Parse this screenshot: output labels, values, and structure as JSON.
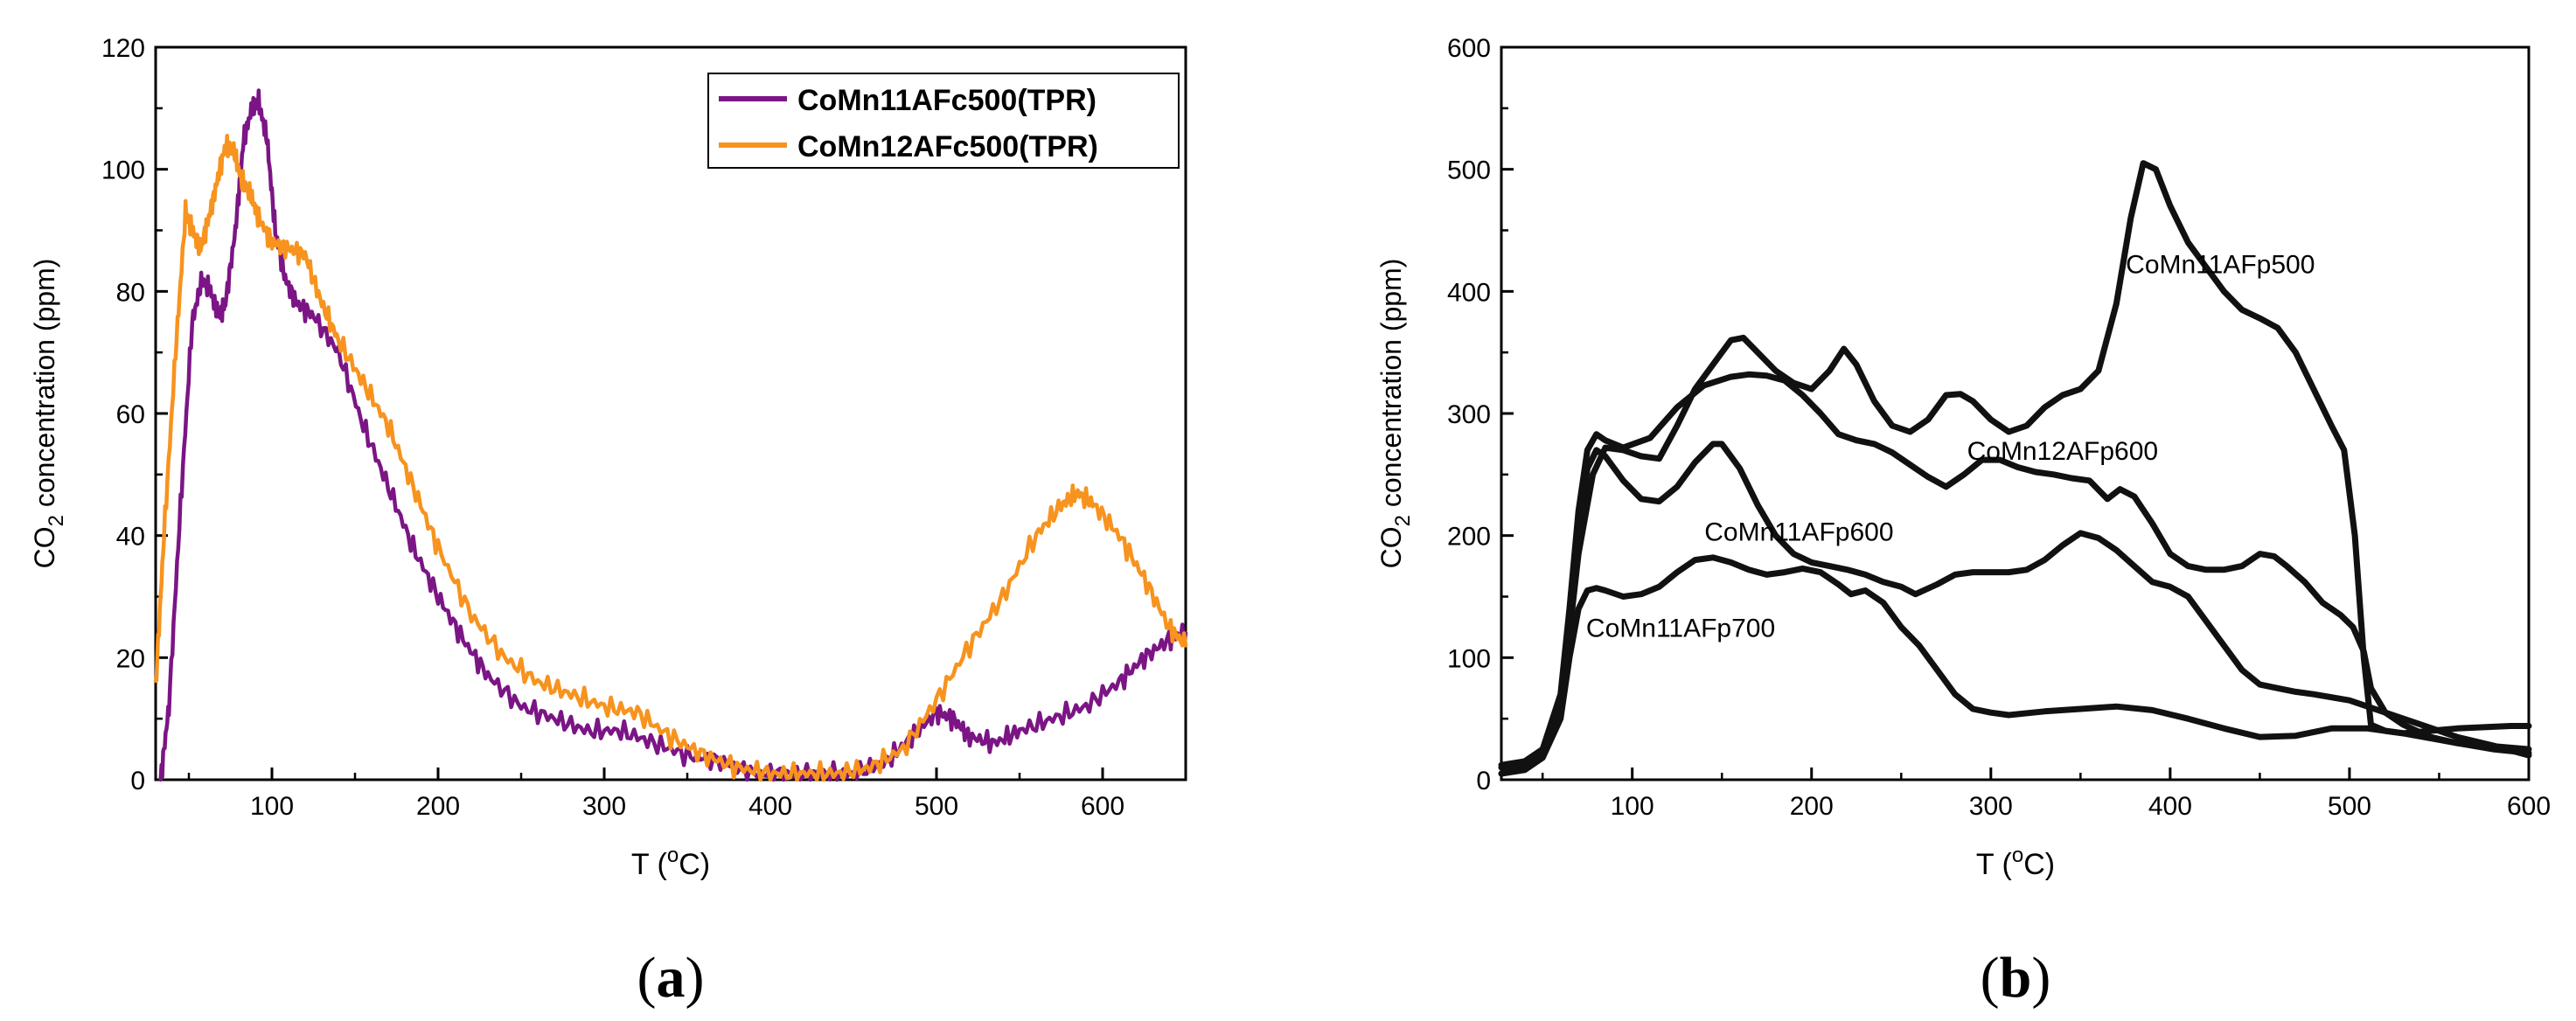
{
  "chart_data": [
    {
      "panel_label": "(a)",
      "type": "line",
      "title": "",
      "xlabel": "T (",
      "xlabel_sup": "o",
      "xlabel_unit": "C)",
      "ylabel_main": "CO",
      "ylabel_sub": "2",
      "ylabel_rest": " concentration (ppm)",
      "xlim": [
        30,
        650
      ],
      "ylim": [
        0,
        120
      ],
      "xticks": [
        100,
        200,
        300,
        400,
        500,
        600
      ],
      "yticks": [
        0,
        20,
        40,
        60,
        80,
        100,
        120
      ],
      "grid": false,
      "legend_position": "top-right",
      "series": [
        {
          "name": "CoMn11AFc500(TPR)",
          "color": "#7B1585",
          "x": [
            33,
            38,
            45,
            52,
            58,
            63,
            68,
            72,
            78,
            83,
            88,
            92,
            97,
            102,
            108,
            115,
            125,
            140,
            155,
            170,
            185,
            200,
            215,
            230,
            250,
            270,
            290,
            310,
            330,
            350,
            370,
            390,
            410,
            430,
            450,
            470,
            485,
            500,
            510,
            520,
            535,
            550,
            570,
            590,
            610,
            625,
            640,
            650
          ],
          "y": [
            0,
            12,
            45,
            75,
            82,
            80,
            76,
            78,
            90,
            105,
            110,
            111,
            105,
            90,
            82,
            78,
            76,
            70,
            58,
            48,
            38,
            30,
            23,
            17,
            12,
            10,
            8,
            8,
            6,
            4,
            3,
            1,
            1,
            1,
            1,
            3,
            7,
            11,
            10,
            7,
            6,
            8,
            10,
            12,
            16,
            20,
            23,
            24
          ]
        },
        {
          "name": "CoMn12AFc500(TPR)",
          "color": "#F7931E",
          "x": [
            30,
            35,
            42,
            48,
            52,
            57,
            62,
            67,
            72,
            77,
            82,
            87,
            92,
            100,
            110,
            120,
            130,
            140,
            155,
            170,
            185,
            200,
            220,
            240,
            260,
            280,
            300,
            320,
            340,
            360,
            380,
            400,
            420,
            440,
            460,
            480,
            500,
            520,
            540,
            560,
            575,
            585,
            595,
            610,
            625,
            640,
            650
          ],
          "y": [
            15,
            40,
            70,
            93,
            90,
            87,
            92,
            98,
            104,
            103,
            98,
            96,
            92,
            88,
            87,
            86,
            78,
            72,
            65,
            58,
            48,
            38,
            27,
            20,
            16,
            14,
            12,
            11,
            7,
            4,
            2,
            1,
            1,
            1,
            2,
            5,
            13,
            22,
            30,
            40,
            45,
            47,
            45,
            40,
            33,
            25,
            22
          ]
        }
      ]
    },
    {
      "panel_label": "(b)",
      "type": "line",
      "title": "",
      "xlabel": "T (",
      "xlabel_sup": "o",
      "xlabel_unit": "C)",
      "ylabel_main": "CO",
      "ylabel_sub": "2",
      "ylabel_rest": " concentration (ppm)",
      "xlim": [
        27,
        600
      ],
      "ylim": [
        0,
        600
      ],
      "xticks": [
        100,
        200,
        300,
        400,
        500,
        600
      ],
      "yticks": [
        0,
        100,
        200,
        300,
        400,
        500,
        600
      ],
      "grid": false,
      "legend_position": "none",
      "annotations": [
        {
          "text": "CoMn11AFp500",
          "x": 428,
          "y": 415
        },
        {
          "text": "CoMn12AFp600",
          "x": 340,
          "y": 262
        },
        {
          "text": "CoMn11AFp600",
          "x": 193,
          "y": 196
        },
        {
          "text": "CoMn11AFp700",
          "x": 127,
          "y": 117
        }
      ],
      "series": [
        {
          "name": "CoMn11AFp500",
          "color": "#111111",
          "x": [
            27,
            40,
            50,
            60,
            65,
            70,
            78,
            85,
            95,
            105,
            115,
            125,
            135,
            145,
            155,
            162,
            170,
            180,
            190,
            200,
            210,
            218,
            225,
            235,
            245,
            255,
            265,
            275,
            283,
            290,
            300,
            310,
            320,
            330,
            340,
            350,
            360,
            370,
            378,
            385,
            392,
            400,
            410,
            420,
            430,
            440,
            450,
            460,
            470,
            480,
            490,
            497,
            503,
            508,
            512,
            520,
            530,
            545,
            560,
            575,
            590,
            600
          ],
          "y": [
            12,
            15,
            25,
            60,
            120,
            185,
            250,
            272,
            270,
            265,
            263,
            290,
            320,
            340,
            360,
            362,
            350,
            335,
            325,
            320,
            335,
            353,
            340,
            310,
            290,
            285,
            295,
            315,
            316,
            310,
            295,
            285,
            290,
            305,
            315,
            320,
            335,
            390,
            460,
            505,
            500,
            470,
            440,
            420,
            400,
            385,
            378,
            370,
            350,
            320,
            290,
            270,
            200,
            100,
            45,
            40,
            38,
            40,
            42,
            43,
            44,
            44
          ]
        },
        {
          "name": "CoMn12AFp600",
          "color": "#111111",
          "x": [
            27,
            40,
            50,
            60,
            65,
            70,
            75,
            80,
            85,
            95,
            110,
            125,
            140,
            155,
            165,
            175,
            185,
            195,
            205,
            215,
            225,
            235,
            245,
            255,
            265,
            275,
            285,
            295,
            305,
            315,
            325,
            335,
            345,
            355,
            365,
            372,
            380,
            390,
            400,
            410,
            420,
            430,
            440,
            450,
            458,
            465,
            475,
            485,
            495,
            502,
            508,
            512,
            520,
            530,
            545,
            560,
            580,
            600
          ],
          "y": [
            10,
            15,
            25,
            70,
            140,
            220,
            270,
            283,
            278,
            272,
            280,
            305,
            323,
            330,
            332,
            331,
            327,
            315,
            300,
            283,
            278,
            275,
            268,
            258,
            248,
            240,
            250,
            262,
            262,
            256,
            252,
            250,
            247,
            245,
            230,
            238,
            232,
            210,
            185,
            175,
            172,
            172,
            175,
            185,
            183,
            175,
            162,
            145,
            135,
            125,
            105,
            75,
            55,
            45,
            35,
            30,
            25,
            22
          ]
        },
        {
          "name": "CoMn11AFp600",
          "color": "#111111",
          "x": [
            27,
            40,
            50,
            60,
            65,
            70,
            75,
            80,
            85,
            95,
            105,
            115,
            125,
            135,
            145,
            150,
            160,
            170,
            180,
            190,
            200,
            210,
            220,
            230,
            240,
            250,
            258,
            270,
            280,
            290,
            300,
            310,
            320,
            330,
            340,
            350,
            360,
            370,
            380,
            390,
            400,
            410,
            420,
            430,
            440,
            450,
            460,
            470,
            480,
            500,
            520,
            540,
            560,
            580,
            600
          ],
          "y": [
            5,
            10,
            20,
            60,
            120,
            200,
            255,
            270,
            265,
            245,
            230,
            228,
            240,
            260,
            275,
            275,
            255,
            225,
            200,
            185,
            178,
            175,
            172,
            168,
            162,
            158,
            152,
            160,
            168,
            170,
            170,
            170,
            172,
            180,
            192,
            202,
            198,
            188,
            175,
            162,
            158,
            150,
            130,
            110,
            90,
            78,
            75,
            72,
            70,
            65,
            55,
            45,
            35,
            28,
            20
          ]
        },
        {
          "name": "CoMn11AFp700",
          "color": "#111111",
          "x": [
            27,
            40,
            50,
            60,
            65,
            70,
            75,
            80,
            85,
            95,
            105,
            115,
            125,
            135,
            145,
            155,
            165,
            175,
            185,
            195,
            205,
            215,
            222,
            230,
            240,
            250,
            260,
            270,
            280,
            290,
            300,
            310,
            330,
            350,
            370,
            390,
            410,
            430,
            450,
            470,
            490,
            510,
            530,
            560,
            600
          ],
          "y": [
            5,
            8,
            18,
            50,
            100,
            140,
            155,
            157,
            155,
            150,
            152,
            158,
            170,
            180,
            182,
            178,
            172,
            168,
            170,
            173,
            170,
            160,
            152,
            155,
            145,
            125,
            110,
            90,
            70,
            58,
            55,
            53,
            56,
            58,
            60,
            57,
            50,
            42,
            35,
            36,
            42,
            42,
            38,
            30,
            25
          ]
        }
      ]
    }
  ]
}
